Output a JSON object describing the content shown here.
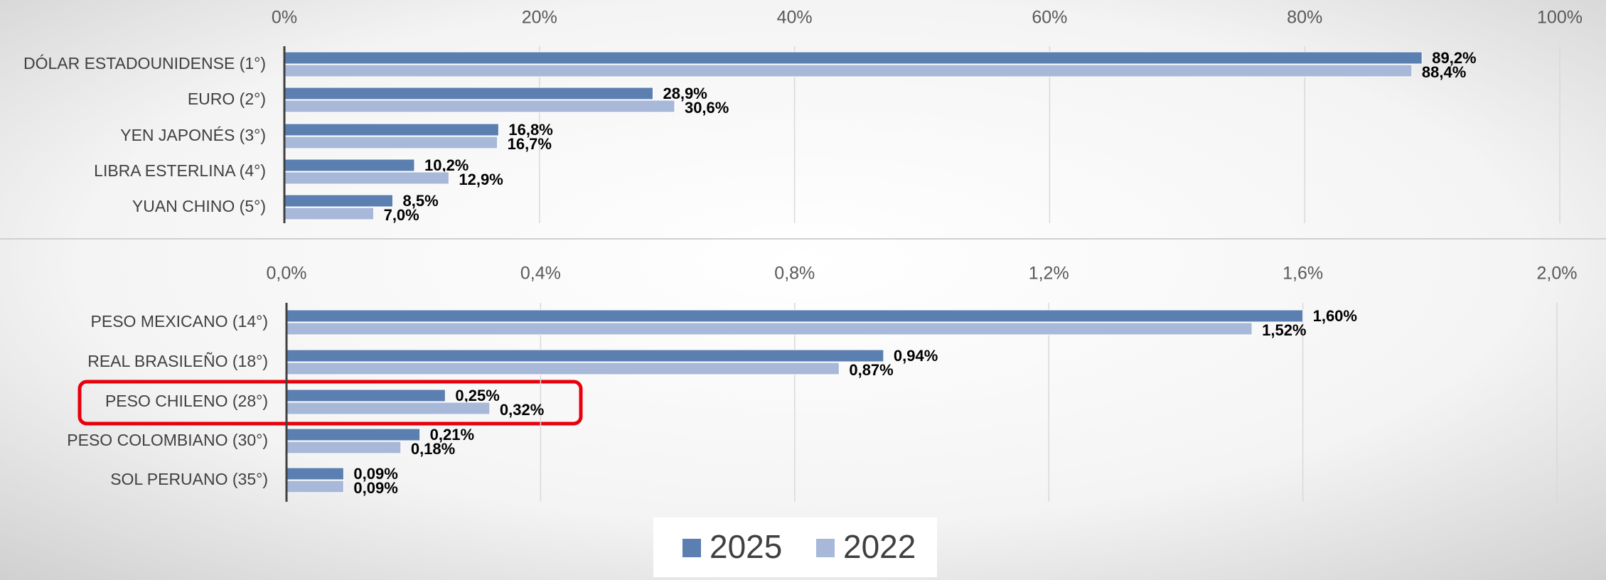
{
  "chart_data": [
    {
      "type": "bar",
      "orientation": "horizontal",
      "categories": [
        "DÓLAR ESTADOUNIDENSE (1°)",
        "EURO (2°)",
        "YEN JAPONÉS (3°)",
        "LIBRA ESTERLINA (4°)",
        "YUAN CHINO (5°)"
      ],
      "series": [
        {
          "name": "2025",
          "color": "#5b7fb0",
          "values": [
            89.2,
            28.9,
            16.8,
            10.2,
            8.5
          ],
          "value_labels": [
            "89,2%",
            "28,9%",
            "16,8%",
            "10,2%",
            "8,5%"
          ]
        },
        {
          "name": "2022",
          "color": "#a7b8d9",
          "values": [
            88.4,
            30.6,
            16.7,
            12.9,
            7.0
          ],
          "value_labels": [
            "88,4%",
            "30,6%",
            "16,7%",
            "12,9%",
            "7,0%"
          ]
        }
      ],
      "xlim": [
        0,
        100
      ],
      "xticks": [
        {
          "value": 0,
          "label": "0%"
        },
        {
          "value": 20,
          "label": "20%"
        },
        {
          "value": 40,
          "label": "40%"
        },
        {
          "value": 60,
          "label": "60%"
        },
        {
          "value": 80,
          "label": "80%"
        },
        {
          "value": 100,
          "label": "100%"
        }
      ],
      "grid": true
    },
    {
      "type": "bar",
      "orientation": "horizontal",
      "categories": [
        "PESO MEXICANO (14°)",
        "REAL BRASILEÑO (18°)",
        "PESO CHILENO (28°)",
        "PESO COLOMBIANO (30°)",
        "SOL PERUANO (35°)"
      ],
      "series": [
        {
          "name": "2025",
          "color": "#5b7fb0",
          "values": [
            1.6,
            0.94,
            0.25,
            0.21,
            0.09
          ],
          "value_labels": [
            "1,60%",
            "0,94%",
            "0,25%",
            "0,21%",
            "0,09%"
          ]
        },
        {
          "name": "2022",
          "color": "#a7b8d9",
          "values": [
            1.52,
            0.87,
            0.32,
            0.18,
            0.09
          ],
          "value_labels": [
            "1,52%",
            "0,87%",
            "0,32%",
            "0,18%",
            "0,09%"
          ]
        }
      ],
      "xlim": [
        0,
        2.0
      ],
      "xticks": [
        {
          "value": 0,
          "label": "0,0%"
        },
        {
          "value": 0.4,
          "label": "0,4%"
        },
        {
          "value": 0.8,
          "label": "0,8%"
        },
        {
          "value": 1.2,
          "label": "1,2%"
        },
        {
          "value": 1.6,
          "label": "1,6%"
        },
        {
          "value": 2.0,
          "label": "2,0%"
        }
      ],
      "grid": true
    }
  ]
}
